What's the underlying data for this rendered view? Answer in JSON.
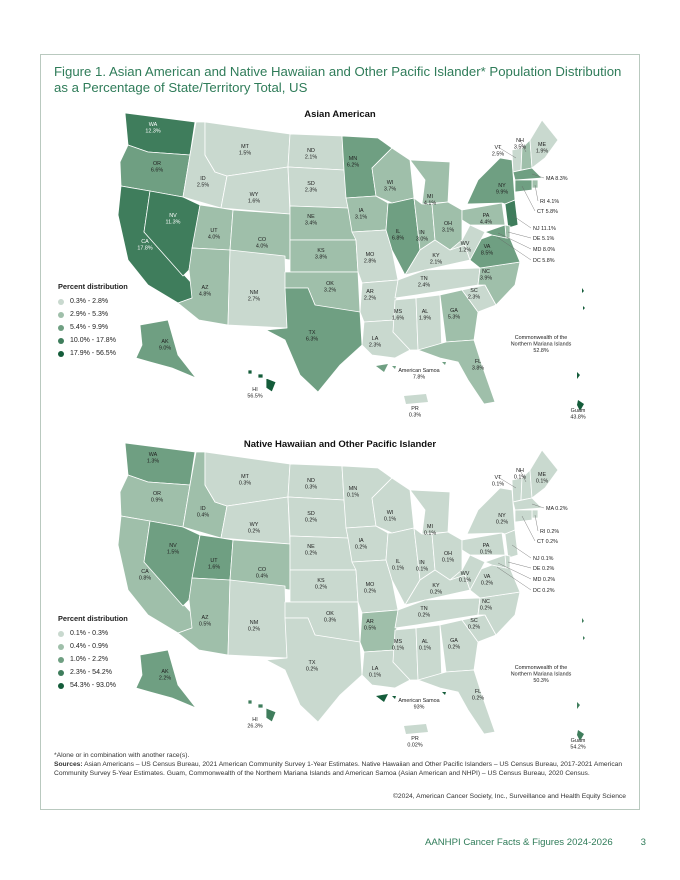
{
  "figure_title": "Figure 1. Asian American and Native Hawaiian and Other Pacific Islander* Population Distribution as a Percentage of State/Territory Total, US",
  "colors": {
    "c1": "#c9d9cf",
    "c2": "#9fbfaa",
    "c3": "#6f9f82",
    "c4": "#3f7d5c",
    "c5": "#145c3a",
    "border": "#ffffff",
    "frame": "#b9c9bf",
    "accent": "#2f7c59"
  },
  "maps": [
    {
      "heading": "Asian American",
      "legend_title": "Percent distribution",
      "legend": [
        {
          "label": "0.3% - 2.8%",
          "color": "#c9d9cf"
        },
        {
          "label": "2.9% - 5.3%",
          "color": "#9fbfaa"
        },
        {
          "label": "5.4% - 9.9%",
          "color": "#6f9f82"
        },
        {
          "label": "10.0% - 17.8%",
          "color": "#3f7d5c"
        },
        {
          "label": "17.9% - 56.5%",
          "color": "#145c3a"
        }
      ],
      "states": {
        "WA": "12.3%",
        "OR": "6.6%",
        "CA": "17.8%",
        "NV": "11.3%",
        "ID": "2.5%",
        "MT": "1.5%",
        "WY": "1.6%",
        "UT": "4.0%",
        "AZ": "4.8%",
        "CO": "4.0%",
        "NM": "2.7%",
        "ND": "2.1%",
        "SD": "2.3%",
        "NE": "3.4%",
        "KS": "3.8%",
        "OK": "3.2%",
        "TX": "6.3%",
        "MN": "6.2%",
        "IA": "3.1%",
        "MO": "2.8%",
        "AR": "2.2%",
        "LA": "2.3%",
        "WI": "3.7%",
        "IL": "6.8%",
        "MS": "1.6%",
        "MI": "4.1%",
        "IN": "3.0%",
        "KY": "2.1%",
        "TN": "2.4%",
        "AL": "1.9%",
        "OH": "3.1%",
        "GA": "5.3%",
        "FL": "3.8%",
        "SC": "2.3%",
        "NC": "3.9%",
        "VA": "8.5%",
        "WV": "1.2%",
        "PA": "4.4%",
        "NY": "9.9%",
        "VT": "2.5%",
        "NH": "3.5%",
        "ME": "1.9%",
        "MA": "8.3%",
        "RI": "4.1%",
        "CT": "5.8%",
        "NJ": "11.1%",
        "DE": "5.1%",
        "MD": "8.0%",
        "DC": "5.8%",
        "AK": "9.0%",
        "HI": "56.5%"
      },
      "territories": {
        "cnmi_name": "Commonwealth of the Northern Mariana Islands",
        "cnmi": "52.8%",
        "samoa_name": "American Samoa",
        "samoa": "7.8%",
        "pr_name": "PR",
        "pr": "0.3%",
        "guam_name": "Guam",
        "guam": "43.8%"
      }
    },
    {
      "heading": "Native Hawaiian and Other Pacific Islander",
      "legend_title": "Percent distribution",
      "legend": [
        {
          "label": "0.1% - 0.3%",
          "color": "#c9d9cf"
        },
        {
          "label": "0.4% - 0.9%",
          "color": "#9fbfaa"
        },
        {
          "label": "1.0% - 2.2%",
          "color": "#6f9f82"
        },
        {
          "label": "2.3% - 54.2%",
          "color": "#3f7d5c"
        },
        {
          "label": "54.3% - 93.0%",
          "color": "#145c3a"
        }
      ],
      "states": {
        "WA": "1.3%",
        "OR": "0.9%",
        "CA": "0.8%",
        "NV": "1.5%",
        "ID": "0.4%",
        "MT": "0.3%",
        "WY": "0.2%",
        "UT": "1.6%",
        "AZ": "0.5%",
        "CO": "0.4%",
        "NM": "0.2%",
        "ND": "0.3%",
        "SD": "0.2%",
        "NE": "0.2%",
        "KS": "0.2%",
        "OK": "0.3%",
        "TX": "0.2%",
        "MN": "0.1%",
        "IA": "0.2%",
        "MO": "0.2%",
        "AR": "0.5%",
        "LA": "0.1%",
        "WI": "0.1%",
        "IL": "0.1%",
        "MS": "0.1%",
        "MI": "0.1%",
        "IN": "0.1%",
        "KY": "0.2%",
        "TN": "0.2%",
        "AL": "0.1%",
        "OH": "0.1%",
        "GA": "0.2%",
        "FL": "0.2%",
        "SC": "0.2%",
        "NC": "0.2%",
        "VA": "0.2%",
        "WV": "0.1%",
        "PA": "0.1%",
        "NY": "0.2%",
        "VT": "0.1%",
        "NH": "0.1%",
        "ME": "0.1%",
        "MA": "0.2%",
        "RI": "0.2%",
        "CT": "0.2%",
        "NJ": "0.1%",
        "DE": "0.2%",
        "MD": "0.2%",
        "DC": "0.2%",
        "AK": "2.2%",
        "HI": "26.3%"
      },
      "territories": {
        "cnmi_name": "Commonwealth of the Northern Mariana Islands",
        "cnmi": "50.3%",
        "samoa_name": "American Samoa",
        "samoa": "93%",
        "pr_name": "PR",
        "pr": "0.02%",
        "guam_name": "Guam",
        "guam": "54.2%"
      }
    }
  ],
  "footnote_star": "*Alone or in combination with another race(s).",
  "sources_label": "Sources:",
  "sources_text": "Asian Americans – US Census Bureau, 2021 American Community Survey 1-Year Estimates. Native Hawaiian and Other Pacific Islanders – US Census Bureau, 2017-2021 American Community Survey 5-Year Estimates. Guam, Commonwealth of the Northern Mariana Islands and American Samoa (Asian American and NHPI) – US Census Bureau, 2020 Census.",
  "copyright": "©2024, American Cancer Society, Inc., Surveillance and Health Equity Science",
  "footer_title": "AANHPI Cancer Facts & Figures 2024-2026",
  "page_number": "3"
}
